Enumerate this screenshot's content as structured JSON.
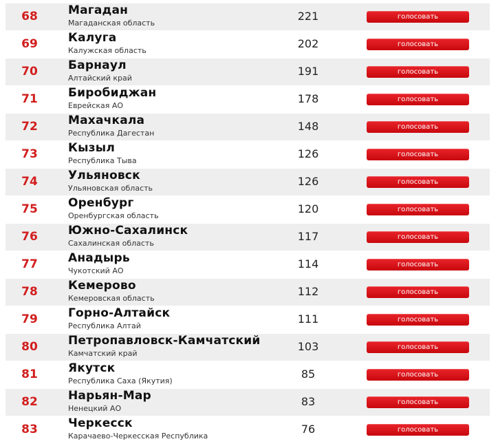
{
  "colors": {
    "rank": "#d21e1e",
    "button": "#d8141a",
    "row_alt": "#eeeeee"
  },
  "rows": [
    {
      "rank": "68",
      "city": "Магадан",
      "region": "Магаданская область",
      "votes": "221",
      "button": "голосовать"
    },
    {
      "rank": "69",
      "city": "Калуга",
      "region": "Калужская область",
      "votes": "202",
      "button": "голосовать"
    },
    {
      "rank": "70",
      "city": "Барнаул",
      "region": "Алтайский край",
      "votes": "191",
      "button": "голосовать"
    },
    {
      "rank": "71",
      "city": "Биробиджан",
      "region": "Еврейская АО",
      "votes": "178",
      "button": "голосовать"
    },
    {
      "rank": "72",
      "city": "Махачкала",
      "region": "Республика Дагестан",
      "votes": "148",
      "button": "голосовать"
    },
    {
      "rank": "73",
      "city": "Кызыл",
      "region": "Республика Тыва",
      "votes": "126",
      "button": "голосовать"
    },
    {
      "rank": "74",
      "city": "Ульяновск",
      "region": "Ульяновская область",
      "votes": "126",
      "button": "голосовать"
    },
    {
      "rank": "75",
      "city": "Оренбург",
      "region": "Оренбургская область",
      "votes": "120",
      "button": "голосовать"
    },
    {
      "rank": "76",
      "city": "Южно-Сахалинск",
      "region": "Сахалинская область",
      "votes": "117",
      "button": "голосовать"
    },
    {
      "rank": "77",
      "city": "Анадырь",
      "region": "Чукотский АО",
      "votes": "114",
      "button": "голосовать"
    },
    {
      "rank": "78",
      "city": "Кемерово",
      "region": "Кемеровская область",
      "votes": "112",
      "button": "голосовать"
    },
    {
      "rank": "79",
      "city": "Горно-Алтайск",
      "region": "Республика Алтай",
      "votes": "111",
      "button": "голосовать"
    },
    {
      "rank": "80",
      "city": "Петропавловск-Камчатский",
      "region": "Камчатский край",
      "votes": "103",
      "button": "голосовать"
    },
    {
      "rank": "81",
      "city": "Якутск",
      "region": "Республика Саха (Якутия)",
      "votes": "85",
      "button": "голосовать"
    },
    {
      "rank": "82",
      "city": "Нарьян-Мар",
      "region": "Ненецкий АО",
      "votes": "83",
      "button": "голосовать"
    },
    {
      "rank": "83",
      "city": "Черкесск",
      "region": "Карачаево-Черкесская Республика",
      "votes": "76",
      "button": "голосовать"
    }
  ]
}
